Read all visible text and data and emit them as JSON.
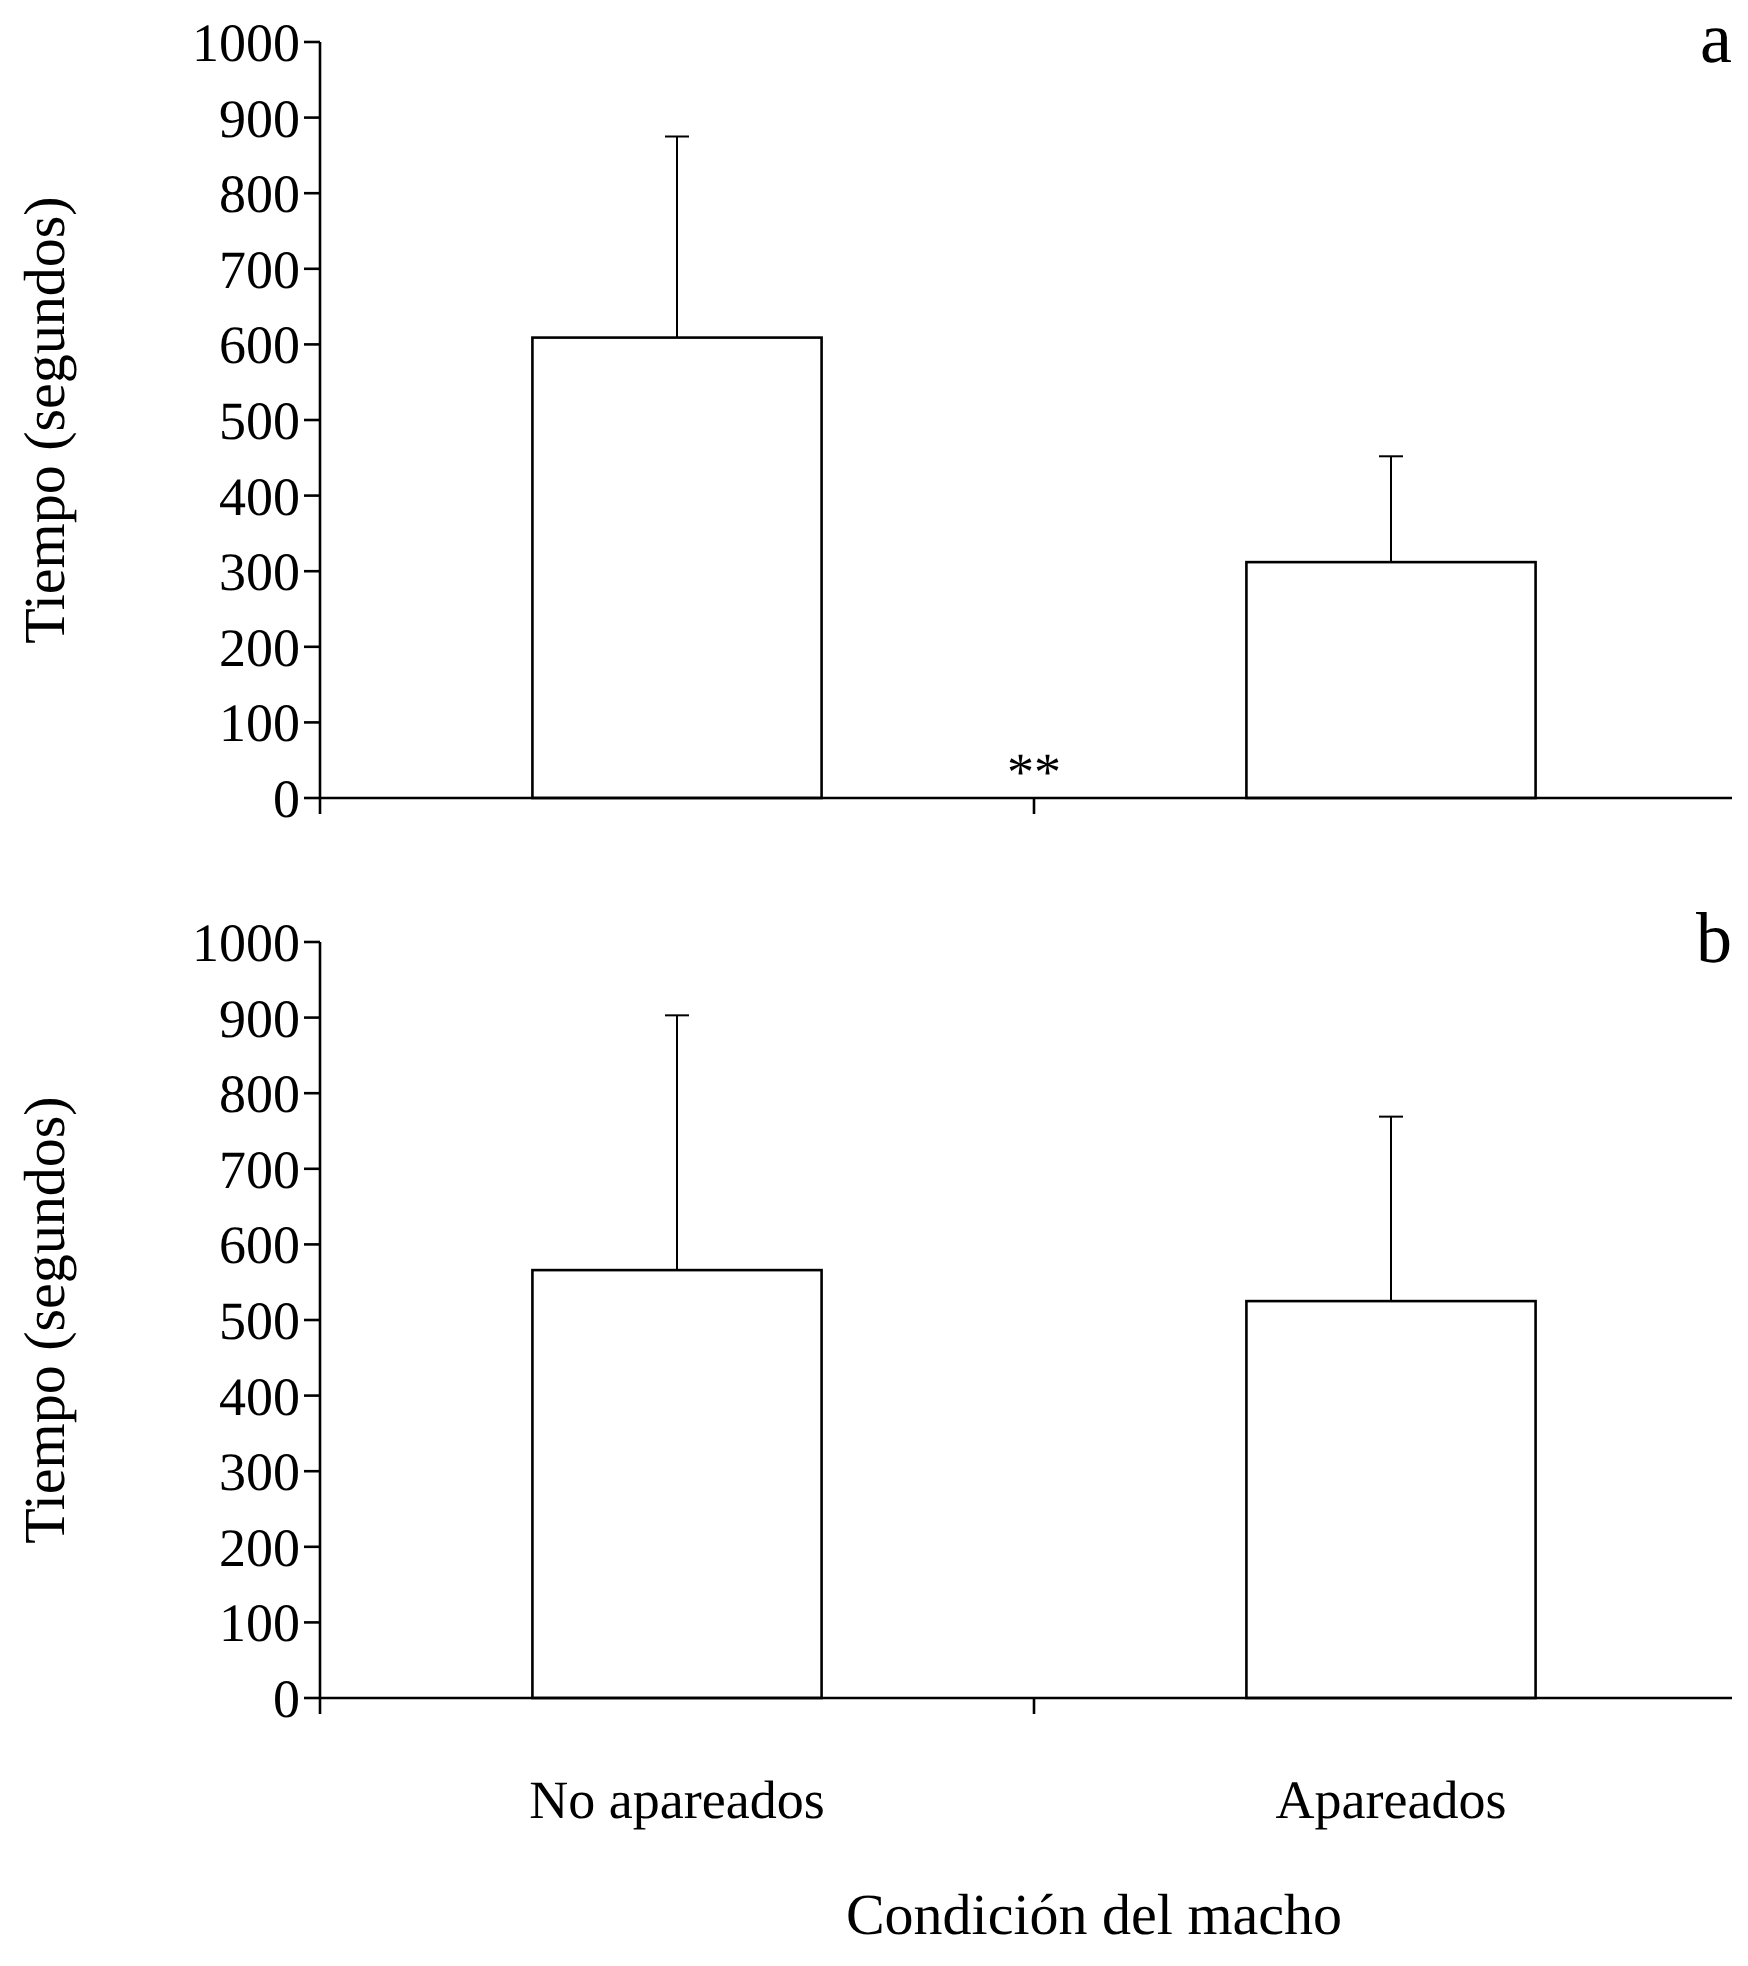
{
  "chart_data": [
    {
      "type": "bar",
      "title": "a",
      "ylabel": "Tiempo (segundos)",
      "categories": [
        null,
        null
      ],
      "values": [
        609,
        312
      ],
      "errors": [
        266,
        140
      ],
      "color": "#ffffff",
      "ylim": [
        0,
        1000
      ],
      "yticks": [
        0,
        100,
        200,
        300,
        400,
        500,
        600,
        700,
        800,
        900,
        1000
      ],
      "annotations": [
        "**"
      ]
    },
    {
      "type": "bar",
      "title": "b",
      "ylabel": "Tiempo (segundos)",
      "xlabel": "Condición del macho",
      "categories": [
        "No apareados",
        "Apareados"
      ],
      "values": [
        566,
        525
      ],
      "errors": [
        337,
        244
      ],
      "color": "#ffffff",
      "ylim": [
        0,
        1000
      ],
      "yticks": [
        0,
        100,
        200,
        300,
        400,
        500,
        600,
        700,
        800,
        900,
        1000
      ]
    }
  ]
}
